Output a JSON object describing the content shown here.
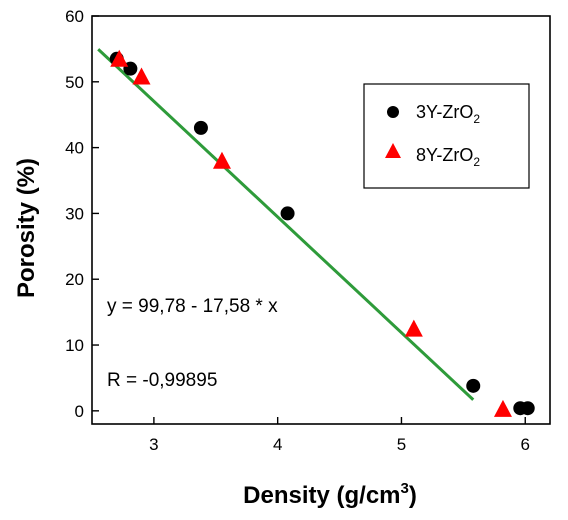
{
  "chart_data": {
    "type": "scatter",
    "xlabel": "Density (g/cm3)",
    "xlabel_parts": {
      "main": "Density (g/cm",
      "superscript": "3",
      "close": ")"
    },
    "ylabel": "Porosity (%)",
    "xlim": [
      2.5,
      6.2
    ],
    "ylim": [
      -2,
      60
    ],
    "x_ticks": [
      3,
      4,
      5,
      6
    ],
    "y_ticks": [
      0,
      10,
      20,
      30,
      40,
      50,
      60
    ],
    "x_tick_labels": [
      "3",
      "4",
      "5",
      "6"
    ],
    "y_tick_labels": [
      "0",
      "10",
      "20",
      "30",
      "40",
      "50",
      "60"
    ],
    "grid": false,
    "legend_position": "top-right",
    "series": [
      {
        "name": "3Y-ZrO2",
        "name_parts": {
          "main": "3Y-ZrO",
          "subscript": "2"
        },
        "marker": "circle",
        "color": "#000000",
        "points": [
          {
            "x": 2.7,
            "y": 53.5
          },
          {
            "x": 2.81,
            "y": 52.0
          },
          {
            "x": 3.38,
            "y": 43.0
          },
          {
            "x": 4.08,
            "y": 30.0
          },
          {
            "x": 5.58,
            "y": 3.8
          },
          {
            "x": 5.96,
            "y": 0.4
          },
          {
            "x": 6.02,
            "y": 0.4
          }
        ]
      },
      {
        "name": "8Y-ZrO2",
        "name_parts": {
          "main": "8Y-ZrO",
          "subscript": "2"
        },
        "marker": "triangle",
        "color": "#ff0000",
        "points": [
          {
            "x": 2.72,
            "y": 53.5
          },
          {
            "x": 2.9,
            "y": 50.8
          },
          {
            "x": 3.55,
            "y": 38.0
          },
          {
            "x": 5.1,
            "y": 12.5
          },
          {
            "x": 5.82,
            "y": 0.3
          }
        ]
      }
    ],
    "fit_line": {
      "color": "#2e9b3a",
      "x_range": [
        2.55,
        5.58
      ],
      "intercept": 99.78,
      "slope": -17.58
    },
    "annotations": [
      {
        "id": "equation",
        "text": "y = 99,78 - 17,58 * x"
      },
      {
        "id": "r-value",
        "text": "R = -0,99895"
      }
    ]
  }
}
